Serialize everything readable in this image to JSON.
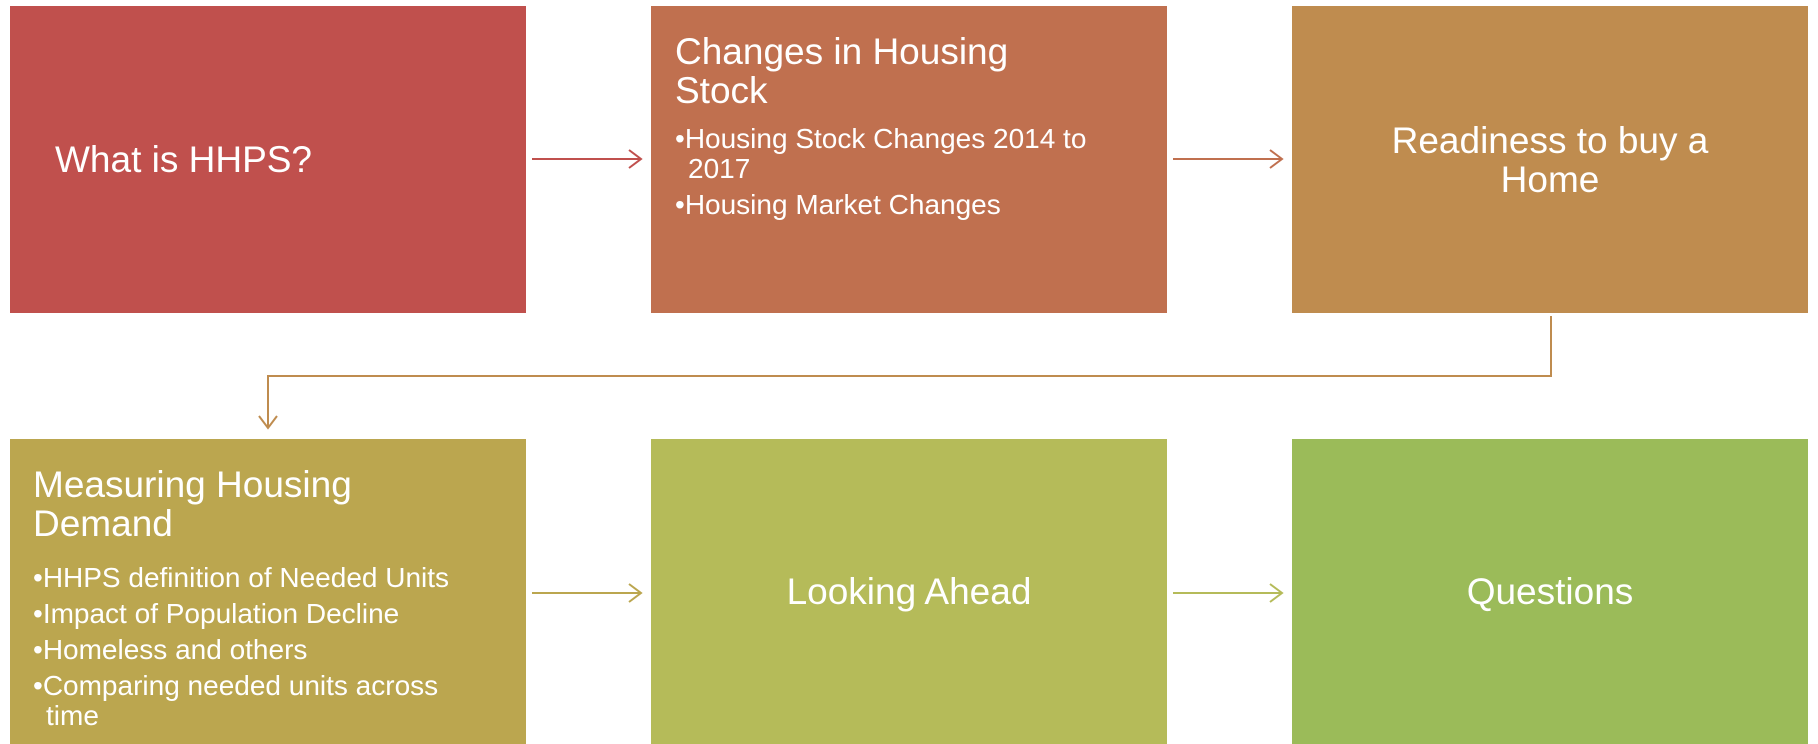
{
  "nodes": [
    {
      "title": "What is HHPS?"
    },
    {
      "title": "Changes in Housing Stock",
      "bullets": [
        "Housing Stock Changes 2014 to 2017",
        "Housing Market Changes"
      ]
    },
    {
      "title": "Readiness to buy a Home"
    },
    {
      "title": "Measuring Housing Demand",
      "bullets": [
        "HHPS definition of Needed Units",
        "Impact of Population Decline",
        "Homeless and others",
        "Comparing needed units across time"
      ]
    },
    {
      "title": "Looking Ahead"
    },
    {
      "title": "Questions"
    }
  ]
}
